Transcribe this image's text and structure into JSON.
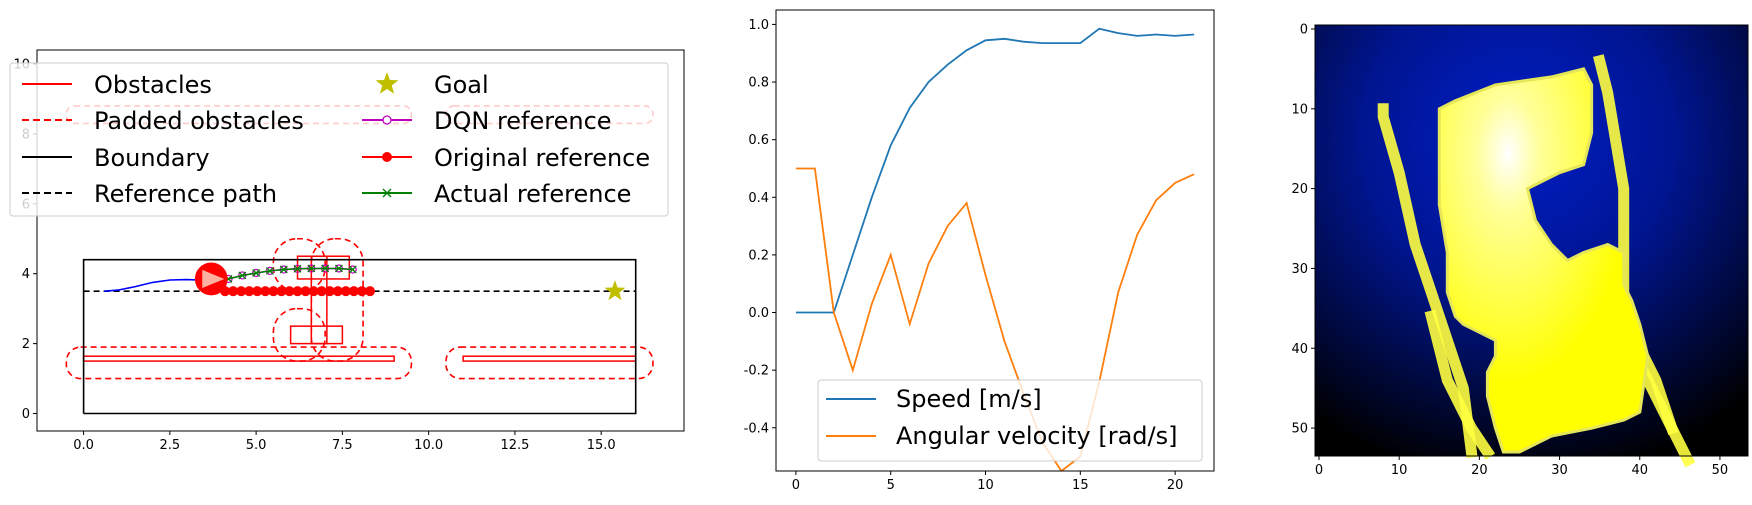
{
  "chart_data": [
    {
      "type": "line",
      "panel": "map",
      "xlim": [
        -1.35,
        17.4
      ],
      "ylim": [
        -0.5,
        10.4
      ],
      "x_ticks": [
        "0.0",
        "2.5",
        "5.0",
        "7.5",
        "10.0",
        "12.5",
        "15.0"
      ],
      "y_ticks": [
        "0",
        "2",
        "4",
        "6",
        "8",
        "10"
      ],
      "legend": {
        "placement": "top",
        "entries": [
          "Obstacles",
          "Padded obstacles",
          "Boundary",
          "Reference path",
          "Goal",
          "DQN reference",
          "Original reference",
          "Actual reference"
        ]
      },
      "boundary": [
        [
          0,
          0
        ],
        [
          16,
          0
        ],
        [
          16,
          4.4
        ],
        [
          0,
          4.4
        ],
        [
          0,
          0
        ]
      ],
      "reference_path": {
        "x": [
          0,
          16
        ],
        "y": [
          3.5,
          3.5
        ]
      },
      "goal": [
        15.4,
        3.5
      ],
      "robot": {
        "x": 3.7,
        "y": 3.85,
        "radius": 0.5
      },
      "obstacles": [
        {
          "x": 0,
          "y": 1.5,
          "w": 9,
          "h": 0.14
        },
        {
          "x": 11,
          "y": 1.5,
          "w": 5,
          "h": 0.14
        },
        {
          "x": 6,
          "y": 2.0,
          "w": 1.5,
          "h": 0.5
        },
        {
          "x": 6.2,
          "y": 3.85,
          "w": 1.5,
          "h": 0.65
        },
        {
          "x": 6.6,
          "y": 2.0,
          "w": 0.45,
          "h": 2.5
        }
      ],
      "padded_obstacles": [
        {
          "x": -0.5,
          "y": 1.0,
          "w": 10,
          "h": 0.9
        },
        {
          "x": 10.5,
          "y": 1.0,
          "w": 6,
          "h": 0.9
        },
        {
          "x": 5.5,
          "y": 1.5,
          "w": 1.5,
          "h": 1.5
        },
        {
          "x": 5.5,
          "y": 3.5,
          "w": 1.5,
          "h": 1.5
        },
        {
          "x": 6.6,
          "y": 1.5,
          "w": 1.5,
          "h": 3.5
        },
        {
          "x": -0.5,
          "y": 8.3,
          "w": 10,
          "h": 0.5
        },
        {
          "x": 10.5,
          "y": 8.3,
          "w": 6,
          "h": 0.5
        }
      ],
      "trajectory": {
        "x": [
          0.6,
          1.0,
          1.5,
          2.0,
          2.5,
          3.0,
          3.3
        ],
        "y": [
          3.5,
          3.53,
          3.63,
          3.75,
          3.82,
          3.83,
          3.82
        ]
      },
      "original_reference": {
        "x0": 4.1,
        "x1": 8.3,
        "count": 19,
        "y": 3.5
      },
      "dqn_reference": {
        "x": [
          4.2,
          4.6,
          5.0,
          5.4,
          5.8,
          6.2,
          6.6,
          7.0,
          7.4,
          7.8
        ],
        "y": [
          3.85,
          3.95,
          4.02,
          4.08,
          4.12,
          4.14,
          4.15,
          4.15,
          4.15,
          4.12
        ]
      },
      "actual_reference": {
        "x": [
          4.2,
          4.6,
          5.0,
          5.4,
          5.8,
          6.2,
          6.6,
          7.0,
          7.4,
          7.8
        ],
        "y": [
          3.85,
          3.95,
          4.02,
          4.08,
          4.12,
          4.14,
          4.15,
          4.15,
          4.15,
          4.12
        ]
      },
      "colors": {
        "obstacle": "#ff0000",
        "boundary": "#000000",
        "goal": "#bfbf00",
        "dqn": "#bf00bf",
        "actual": "#008000",
        "trajectory": "#0000ff"
      }
    },
    {
      "type": "line",
      "panel": "velocity",
      "xlim": [
        -1.05,
        22.05
      ],
      "ylim": [
        -0.55,
        1.05
      ],
      "x_ticks": [
        "0",
        "5",
        "10",
        "15",
        "20"
      ],
      "y_ticks": [
        "-0.4",
        "-0.2",
        "0.0",
        "0.2",
        "0.4",
        "0.6",
        "0.8",
        "1.0"
      ],
      "legend": {
        "placement": "lower center"
      },
      "series": [
        {
          "name": "Speed [m/s]",
          "color": "#1f77b4",
          "x": [
            0,
            1,
            2,
            3,
            4,
            5,
            6,
            7,
            8,
            9,
            10,
            11,
            12,
            13,
            14,
            15,
            16,
            17,
            18,
            19,
            20,
            21
          ],
          "values": [
            0.0,
            0.0,
            0.0,
            0.2,
            0.4,
            0.58,
            0.71,
            0.8,
            0.86,
            0.91,
            0.945,
            0.95,
            0.94,
            0.935,
            0.935,
            0.935,
            0.985,
            0.97,
            0.96,
            0.965,
            0.96,
            0.965
          ]
        },
        {
          "name": "Angular velocity [rad/s]",
          "color": "#ff7f0e",
          "x": [
            0,
            1,
            2,
            3,
            4,
            5,
            6,
            7,
            8,
            9,
            10,
            11,
            12,
            13,
            14,
            15,
            16,
            17,
            18,
            19,
            20,
            21
          ],
          "values": [
            0.5,
            0.5,
            0.0,
            -0.2,
            0.03,
            0.2,
            -0.04,
            0.17,
            0.3,
            0.38,
            0.13,
            -0.1,
            -0.28,
            -0.45,
            -0.55,
            -0.5,
            -0.24,
            0.07,
            0.27,
            0.39,
            0.45,
            0.48
          ]
        }
      ]
    },
    {
      "type": "heatmap",
      "panel": "occupancy-image",
      "xlim": [
        -0.5,
        53.5
      ],
      "ylim": [
        53.5,
        -0.5
      ],
      "x_ticks": [
        "0",
        "10",
        "20",
        "30",
        "40",
        "50"
      ],
      "y_ticks": [
        "0",
        "10",
        "20",
        "30",
        "40",
        "50"
      ],
      "colors": {
        "background_center": "#001ec8",
        "background_edge": "#000000",
        "free": "#ffff00",
        "free_highlight": "#ffffff"
      },
      "free_space_polygon": [
        [
          15,
          10
        ],
        [
          17,
          9
        ],
        [
          22,
          7
        ],
        [
          29,
          6
        ],
        [
          33,
          5
        ],
        [
          34,
          7
        ],
        [
          34,
          13
        ],
        [
          33,
          17
        ],
        [
          30,
          18
        ],
        [
          28,
          19
        ],
        [
          26,
          20
        ],
        [
          27,
          24
        ],
        [
          29,
          27
        ],
        [
          31,
          29
        ],
        [
          33,
          28
        ],
        [
          36,
          27
        ],
        [
          38,
          28
        ],
        [
          38,
          32
        ],
        [
          39,
          34
        ],
        [
          40,
          37
        ],
        [
          41,
          41
        ],
        [
          40,
          48
        ],
        [
          38,
          49
        ],
        [
          34,
          50
        ],
        [
          29,
          51
        ],
        [
          25,
          53
        ],
        [
          23,
          53
        ],
        [
          22,
          50
        ],
        [
          21,
          46
        ],
        [
          21,
          43
        ],
        [
          22,
          41
        ],
        [
          22,
          39
        ],
        [
          20,
          38
        ],
        [
          18,
          37
        ],
        [
          17,
          36
        ],
        [
          16,
          33
        ],
        [
          16,
          28
        ],
        [
          15,
          22
        ],
        [
          15,
          16
        ]
      ],
      "rails": [
        [
          [
            8,
            10
          ],
          [
            8,
            11
          ],
          [
            10,
            18
          ],
          [
            12,
            27
          ],
          [
            14,
            33
          ],
          [
            16,
            39
          ],
          [
            18,
            45
          ],
          [
            19,
            53
          ]
        ],
        [
          [
            14,
            36
          ],
          [
            16,
            44
          ],
          [
            19,
            50
          ],
          [
            21,
            53
          ]
        ],
        [
          [
            35,
            4
          ],
          [
            36,
            8
          ],
          [
            37,
            14
          ],
          [
            38,
            20
          ],
          [
            38,
            28
          ],
          [
            38,
            35
          ],
          [
            40,
            42
          ],
          [
            44,
            50
          ],
          [
            46,
            54
          ]
        ],
        [
          [
            40,
            40
          ],
          [
            42,
            44
          ],
          [
            44,
            50
          ]
        ]
      ]
    }
  ]
}
